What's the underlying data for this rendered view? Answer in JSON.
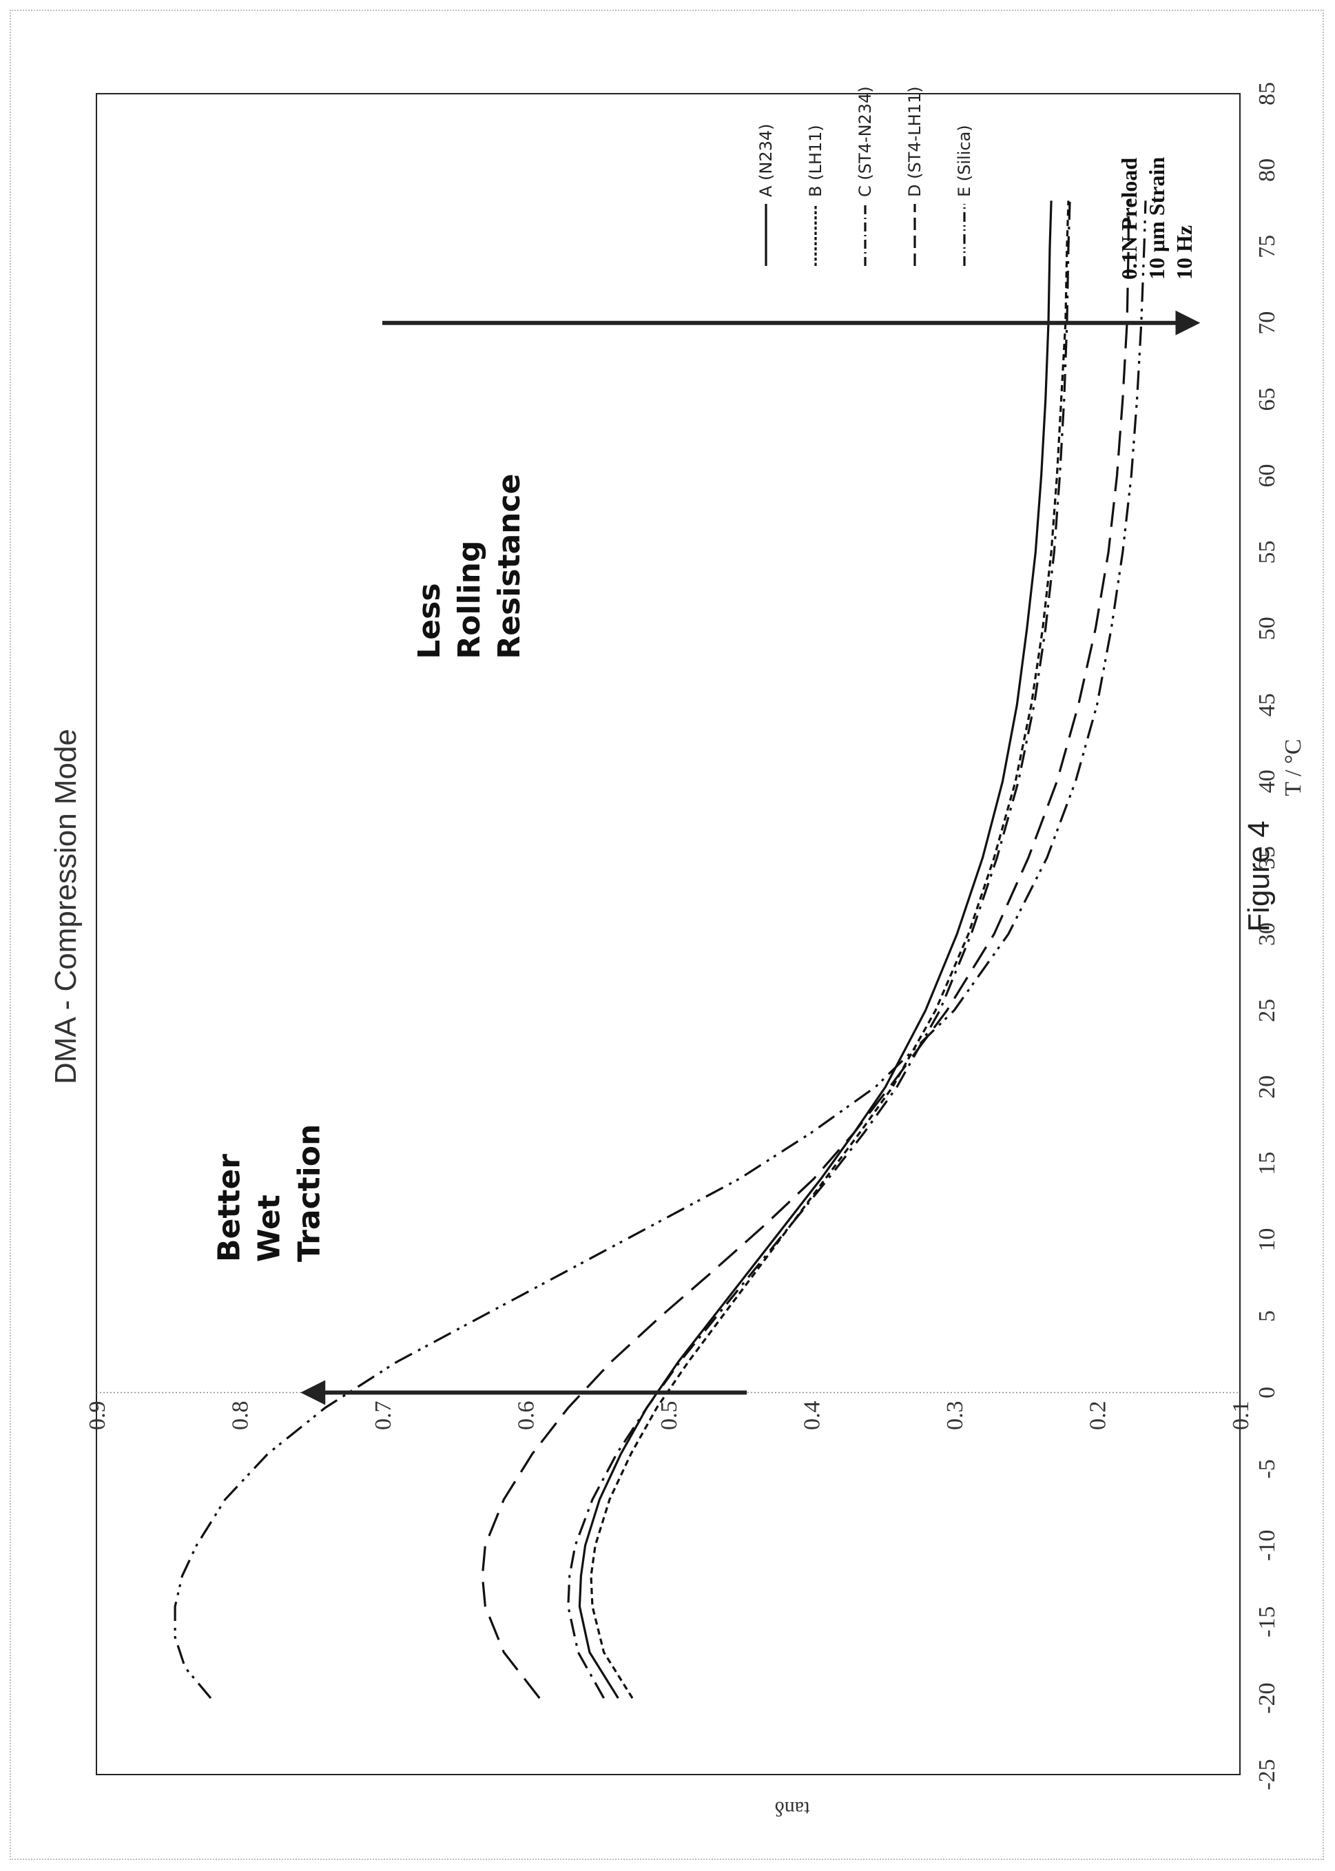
{
  "chart_data": {
    "type": "line",
    "title": "DMA - Compression Mode",
    "xlabel": "T / °C",
    "ylabel": "tanδ",
    "xlim": [
      -25,
      85
    ],
    "ylim": [
      0.1,
      0.9
    ],
    "x_ticks": [
      "-25",
      "-20",
      "-15",
      "-10",
      "-5",
      "0",
      "5",
      "10",
      "15",
      "20",
      "25",
      "30",
      "35",
      "40",
      "45",
      "50",
      "55",
      "60",
      "65",
      "70",
      "75",
      "80",
      "85"
    ],
    "y_ticks": [
      "0.1",
      "0.2",
      "0.3",
      "0.4",
      "0.5",
      "0.6",
      "0.7",
      "0.8",
      "0.9"
    ],
    "legend_placement": "top-right",
    "conditions": [
      "0.1N Preload",
      "10 μm Strain",
      "10 Hz"
    ],
    "figure_caption": "Figure 4",
    "series": [
      {
        "name": "A (N234)",
        "style": "solid",
        "x": [
          -20,
          -17,
          -14,
          -12,
          -10,
          -7,
          -4,
          -1,
          2,
          5,
          8,
          11,
          14,
          17,
          20,
          25,
          30,
          35,
          40,
          45,
          50,
          55,
          60,
          65,
          70,
          75,
          78
        ],
        "y": [
          0.535,
          0.555,
          0.562,
          0.561,
          0.558,
          0.548,
          0.533,
          0.515,
          0.493,
          0.468,
          0.443,
          0.418,
          0.393,
          0.37,
          0.348,
          0.32,
          0.298,
          0.28,
          0.266,
          0.256,
          0.249,
          0.243,
          0.239,
          0.236,
          0.234,
          0.233,
          0.232
        ]
      },
      {
        "name": "B (LH11)",
        "style": "short-dash",
        "x": [
          -20,
          -17,
          -14,
          -12,
          -10,
          -7,
          -4,
          -1,
          2,
          5,
          8,
          11,
          14,
          17,
          20,
          25,
          30,
          35,
          40,
          45,
          50,
          55,
          60,
          65,
          70,
          75,
          78
        ],
        "y": [
          0.525,
          0.545,
          0.553,
          0.554,
          0.551,
          0.541,
          0.526,
          0.508,
          0.486,
          0.462,
          0.438,
          0.414,
          0.39,
          0.366,
          0.343,
          0.313,
          0.29,
          0.272,
          0.257,
          0.246,
          0.238,
          0.232,
          0.228,
          0.225,
          0.222,
          0.221,
          0.22
        ]
      },
      {
        "name": "C (ST4-N234)",
        "style": "dash-dot",
        "x": [
          -20,
          -17,
          -14,
          -12,
          -10,
          -7,
          -4,
          -1,
          2,
          5,
          8,
          11,
          14,
          17,
          20,
          25,
          30,
          35,
          40,
          45,
          50,
          55,
          60,
          65,
          70,
          75,
          78
        ],
        "y": [
          0.545,
          0.563,
          0.57,
          0.569,
          0.565,
          0.553,
          0.536,
          0.515,
          0.492,
          0.466,
          0.44,
          0.414,
          0.388,
          0.363,
          0.34,
          0.31,
          0.288,
          0.27,
          0.255,
          0.244,
          0.236,
          0.23,
          0.226,
          0.223,
          0.221,
          0.22,
          0.219
        ]
      },
      {
        "name": "D (ST4-LH11)",
        "style": "long-dash",
        "x": [
          -20,
          -17,
          -14,
          -12,
          -10,
          -7,
          -4,
          -1,
          2,
          5,
          8,
          11,
          14,
          17,
          20,
          25,
          30,
          35,
          40,
          45,
          50,
          55,
          60,
          65,
          70,
          75,
          78
        ],
        "y": [
          0.59,
          0.615,
          0.628,
          0.63,
          0.628,
          0.615,
          0.595,
          0.57,
          0.54,
          0.505,
          0.468,
          0.432,
          0.398,
          0.37,
          0.345,
          0.305,
          0.272,
          0.248,
          0.228,
          0.213,
          0.201,
          0.192,
          0.186,
          0.182,
          0.179,
          0.178,
          0.178
        ]
      },
      {
        "name": "E (Silica)",
        "style": "dash-dot-dot",
        "x": [
          -20,
          -18,
          -16,
          -14,
          -12,
          -10,
          -7,
          -4,
          -1,
          2,
          5,
          8,
          11,
          14,
          17,
          20,
          25,
          30,
          35,
          40,
          45,
          50,
          55,
          60,
          65,
          70,
          75,
          78
        ],
        "y": [
          0.82,
          0.838,
          0.845,
          0.845,
          0.84,
          0.83,
          0.81,
          0.78,
          0.74,
          0.69,
          0.63,
          0.57,
          0.51,
          0.45,
          0.4,
          0.355,
          0.3,
          0.262,
          0.235,
          0.215,
          0.2,
          0.19,
          0.182,
          0.176,
          0.172,
          0.169,
          0.167,
          0.166
        ]
      }
    ],
    "annotations": [
      {
        "lines": [
          "Better",
          "Wet",
          "Traction"
        ]
      },
      {
        "lines": [
          "Less",
          "Rolling",
          "Resistance"
        ]
      }
    ]
  }
}
